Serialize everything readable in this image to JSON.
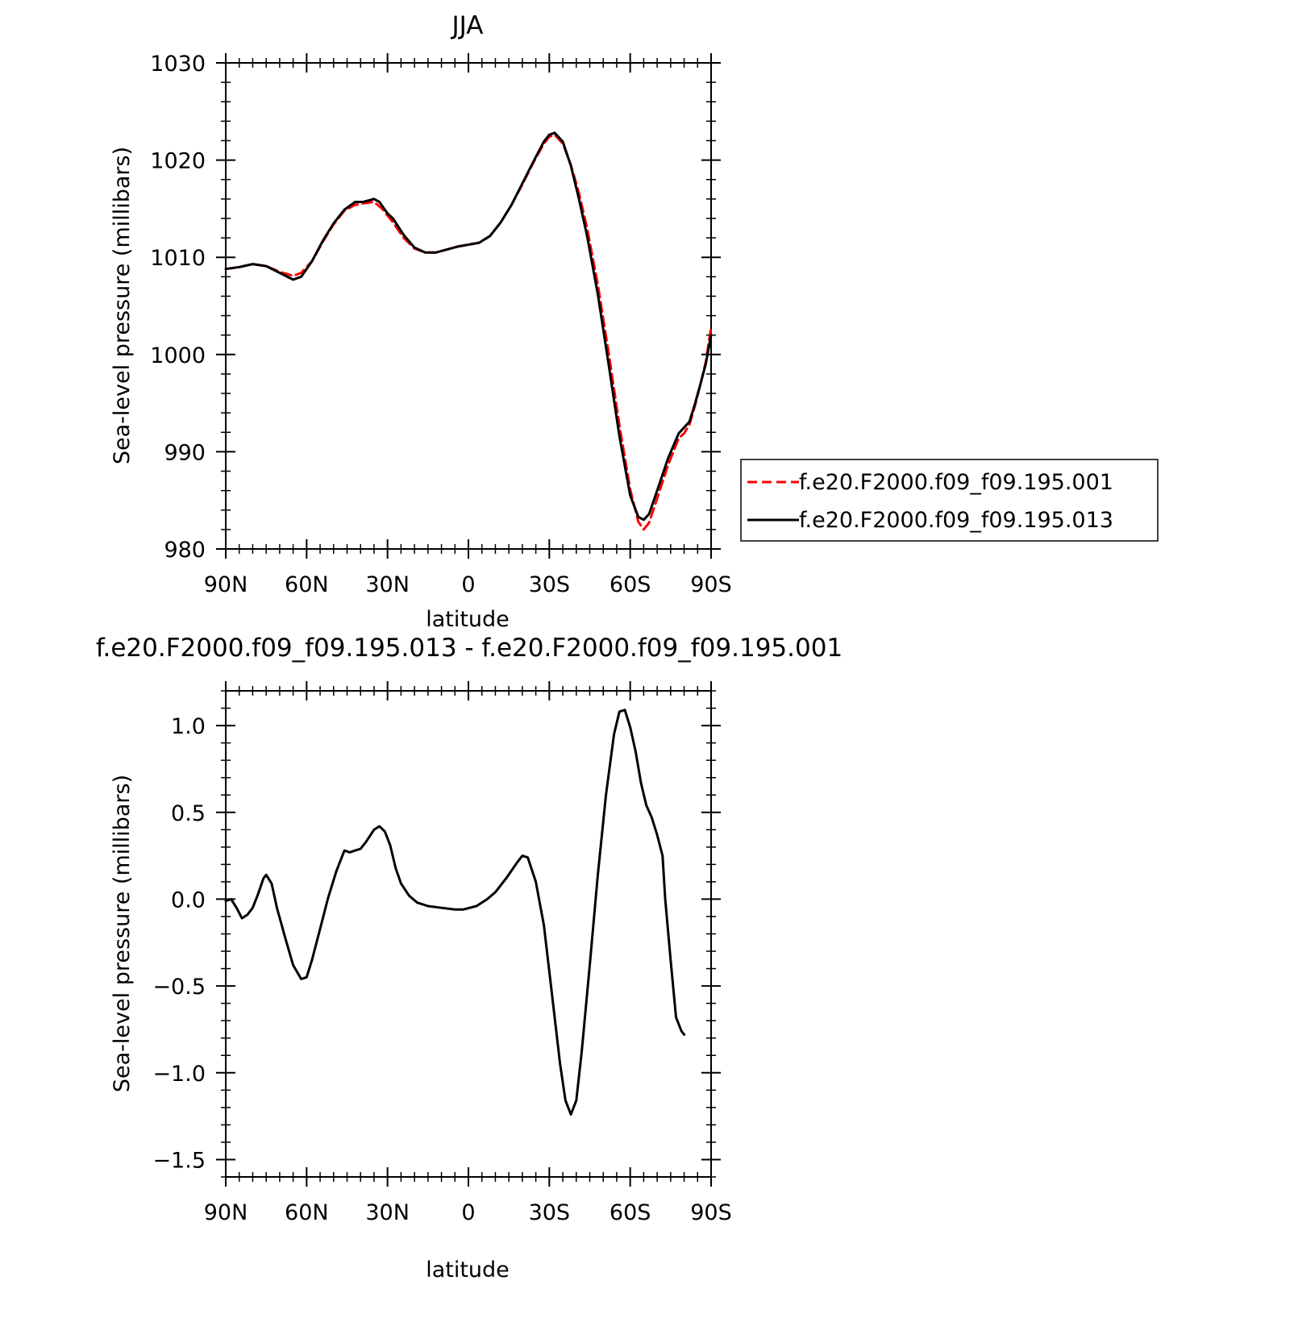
{
  "chart_data": [
    {
      "type": "line",
      "title": "JJA",
      "xlabel": "latitude",
      "ylabel": "Sea-level pressure (millibars)",
      "xlim": [
        90,
        -90
      ],
      "ylim": [
        980,
        1030
      ],
      "x_ticks": [
        {
          "value": 90,
          "label": "90N"
        },
        {
          "value": 60,
          "label": "60N"
        },
        {
          "value": 30,
          "label": "30N"
        },
        {
          "value": 0,
          "label": "0"
        },
        {
          "value": -30,
          "label": "30S"
        },
        {
          "value": -60,
          "label": "60S"
        },
        {
          "value": -90,
          "label": "90S"
        }
      ],
      "y_ticks": [
        {
          "value": 980,
          "label": "980"
        },
        {
          "value": 990,
          "label": "990"
        },
        {
          "value": 1000,
          "label": "1000"
        },
        {
          "value": 1010,
          "label": "1010"
        },
        {
          "value": 1020,
          "label": "1020"
        },
        {
          "value": 1030,
          "label": "1030"
        }
      ],
      "legend_position": "right",
      "series": [
        {
          "name": "f.e20.F2000.f09_f09.195.001",
          "color": "#ff0000",
          "dash": "dashed",
          "points": [
            [
              90,
              1008.8
            ],
            [
              85,
              1009.0
            ],
            [
              80,
              1009.3
            ],
            [
              75,
              1009.1
            ],
            [
              70,
              1008.5
            ],
            [
              65,
              1008.1
            ],
            [
              62,
              1008.4
            ],
            [
              58,
              1009.6
            ],
            [
              54,
              1011.6
            ],
            [
              50,
              1013.4
            ],
            [
              46,
              1014.8
            ],
            [
              42,
              1015.4
            ],
            [
              38,
              1015.6
            ],
            [
              35,
              1015.7
            ],
            [
              32,
              1015.0
            ],
            [
              28,
              1013.6
            ],
            [
              24,
              1012.0
            ],
            [
              20,
              1010.9
            ],
            [
              16,
              1010.5
            ],
            [
              12,
              1010.5
            ],
            [
              8,
              1010.8
            ],
            [
              4,
              1011.1
            ],
            [
              0,
              1011.3
            ],
            [
              -4,
              1011.5
            ],
            [
              -8,
              1012.2
            ],
            [
              -12,
              1013.6
            ],
            [
              -16,
              1015.4
            ],
            [
              -20,
              1017.5
            ],
            [
              -24,
              1019.7
            ],
            [
              -28,
              1021.7
            ],
            [
              -30,
              1022.4
            ],
            [
              -32,
              1022.6
            ],
            [
              -35,
              1021.7
            ],
            [
              -38,
              1019.5
            ],
            [
              -41,
              1016.6
            ],
            [
              -44,
              1013.0
            ],
            [
              -48,
              1007.2
            ],
            [
              -52,
              1000.2
            ],
            [
              -56,
              992.7
            ],
            [
              -60,
              986.1
            ],
            [
              -63,
              982.8
            ],
            [
              -65,
              982.0
            ],
            [
              -67,
              982.7
            ],
            [
              -70,
              985.2
            ],
            [
              -74,
              988.6
            ],
            [
              -78,
              991.4
            ],
            [
              -80,
              991.9
            ],
            [
              -82,
              992.8
            ],
            [
              -84,
              994.7
            ],
            [
              -86,
              996.9
            ],
            [
              -88,
              999.2
            ],
            [
              -90,
              1002.8
            ]
          ]
        },
        {
          "name": "f.e20.F2000.f09_f09.195.013",
          "color": "#000000",
          "dash": "solid",
          "points": [
            [
              90,
              1008.8
            ],
            [
              85,
              1009.0
            ],
            [
              80,
              1009.3
            ],
            [
              75,
              1009.1
            ],
            [
              70,
              1008.4
            ],
            [
              65,
              1007.7
            ],
            [
              62,
              1008.0
            ],
            [
              58,
              1009.6
            ],
            [
              54,
              1011.7
            ],
            [
              50,
              1013.5
            ],
            [
              46,
              1014.9
            ],
            [
              42,
              1015.7
            ],
            [
              39,
              1015.7
            ],
            [
              35,
              1016.0
            ],
            [
              33,
              1015.7
            ],
            [
              30,
              1014.5
            ],
            [
              28,
              1014.0
            ],
            [
              24,
              1012.3
            ],
            [
              20,
              1011.0
            ],
            [
              16,
              1010.5
            ],
            [
              12,
              1010.5
            ],
            [
              8,
              1010.8
            ],
            [
              4,
              1011.1
            ],
            [
              0,
              1011.3
            ],
            [
              -4,
              1011.5
            ],
            [
              -8,
              1012.2
            ],
            [
              -12,
              1013.6
            ],
            [
              -16,
              1015.4
            ],
            [
              -20,
              1017.6
            ],
            [
              -24,
              1019.8
            ],
            [
              -28,
              1021.9
            ],
            [
              -30,
              1022.6
            ],
            [
              -32,
              1022.8
            ],
            [
              -35,
              1021.9
            ],
            [
              -38,
              1019.4
            ],
            [
              -41,
              1016.0
            ],
            [
              -44,
              1012.2
            ],
            [
              -48,
              1006.2
            ],
            [
              -52,
              999.0
            ],
            [
              -56,
              991.6
            ],
            [
              -60,
              985.5
            ],
            [
              -63,
              983.3
            ],
            [
              -65,
              983.0
            ],
            [
              -67,
              983.6
            ],
            [
              -70,
              986.0
            ],
            [
              -74,
              989.3
            ],
            [
              -78,
              991.9
            ],
            [
              -80,
              992.5
            ],
            [
              -82,
              993.1
            ],
            [
              -84,
              994.9
            ],
            [
              -86,
              996.9
            ],
            [
              -88,
              999.0
            ],
            [
              -90,
              1002.0
            ]
          ]
        }
      ]
    },
    {
      "type": "line",
      "title": "f.e20.F2000.f09_f09.195.013 - f.e20.F2000.f09_f09.195.001",
      "xlabel": "latitude",
      "ylabel": "Sea-level pressure (millibars)",
      "xlim": [
        90,
        -90
      ],
      "ylim": [
        -1.6,
        1.2
      ],
      "x_ticks": [
        {
          "value": 90,
          "label": "90N"
        },
        {
          "value": 60,
          "label": "60N"
        },
        {
          "value": 30,
          "label": "30N"
        },
        {
          "value": 0,
          "label": "0"
        },
        {
          "value": -30,
          "label": "30S"
        },
        {
          "value": -60,
          "label": "60S"
        },
        {
          "value": -90,
          "label": "90S"
        }
      ],
      "y_ticks": [
        {
          "value": 1.0,
          "label": "1.0"
        },
        {
          "value": 0.5,
          "label": "0.5"
        },
        {
          "value": 0.0,
          "label": "0.0"
        },
        {
          "value": -0.5,
          "label": "-0.5"
        },
        {
          "value": -1.0,
          "label": "-1.0"
        },
        {
          "value": -1.5,
          "label": "-1.5"
        }
      ],
      "series": [
        {
          "color": "#000000",
          "dash": "solid",
          "points": [
            [
              90,
              -0.01
            ],
            [
              88,
              0.0
            ],
            [
              86,
              -0.05
            ],
            [
              84,
              -0.11
            ],
            [
              82,
              -0.09
            ],
            [
              80,
              -0.05
            ],
            [
              78,
              0.03
            ],
            [
              76,
              0.12
            ],
            [
              75,
              0.14
            ],
            [
              73,
              0.09
            ],
            [
              71,
              -0.05
            ],
            [
              68,
              -0.22
            ],
            [
              65,
              -0.38
            ],
            [
              62,
              -0.46
            ],
            [
              60,
              -0.45
            ],
            [
              58,
              -0.35
            ],
            [
              55,
              -0.17
            ],
            [
              52,
              0.01
            ],
            [
              49,
              0.16
            ],
            [
              46,
              0.28
            ],
            [
              44,
              0.27
            ],
            [
              42,
              0.28
            ],
            [
              40,
              0.29
            ],
            [
              38,
              0.33
            ],
            [
              35,
              0.4
            ],
            [
              33,
              0.42
            ],
            [
              31,
              0.39
            ],
            [
              29,
              0.31
            ],
            [
              27,
              0.18
            ],
            [
              25,
              0.09
            ],
            [
              22,
              0.02
            ],
            [
              19,
              -0.02
            ],
            [
              15,
              -0.04
            ],
            [
              10,
              -0.05
            ],
            [
              5,
              -0.06
            ],
            [
              2,
              -0.06
            ],
            [
              -3,
              -0.04
            ],
            [
              -7,
              0.0
            ],
            [
              -10,
              0.04
            ],
            [
              -14,
              0.12
            ],
            [
              -18,
              0.21
            ],
            [
              -20,
              0.25
            ],
            [
              -22,
              0.24
            ],
            [
              -25,
              0.1
            ],
            [
              -28,
              -0.15
            ],
            [
              -31,
              -0.55
            ],
            [
              -34,
              -0.95
            ],
            [
              -36,
              -1.16
            ],
            [
              -38,
              -1.24
            ],
            [
              -40,
              -1.16
            ],
            [
              -42,
              -0.88
            ],
            [
              -45,
              -0.38
            ],
            [
              -48,
              0.14
            ],
            [
              -51,
              0.6
            ],
            [
              -54,
              0.95
            ],
            [
              -56,
              1.08
            ],
            [
              -58,
              1.09
            ],
            [
              -60,
              0.99
            ],
            [
              -62,
              0.85
            ],
            [
              -64,
              0.67
            ],
            [
              -66,
              0.54
            ],
            [
              -68,
              0.47
            ],
            [
              -70,
              0.37
            ],
            [
              -72,
              0.25
            ],
            [
              -73,
              0.0
            ],
            [
              -75,
              -0.35
            ],
            [
              -77,
              -0.68
            ],
            [
              -79,
              -0.76
            ],
            [
              -80,
              -0.78
            ]
          ]
        }
      ]
    }
  ]
}
